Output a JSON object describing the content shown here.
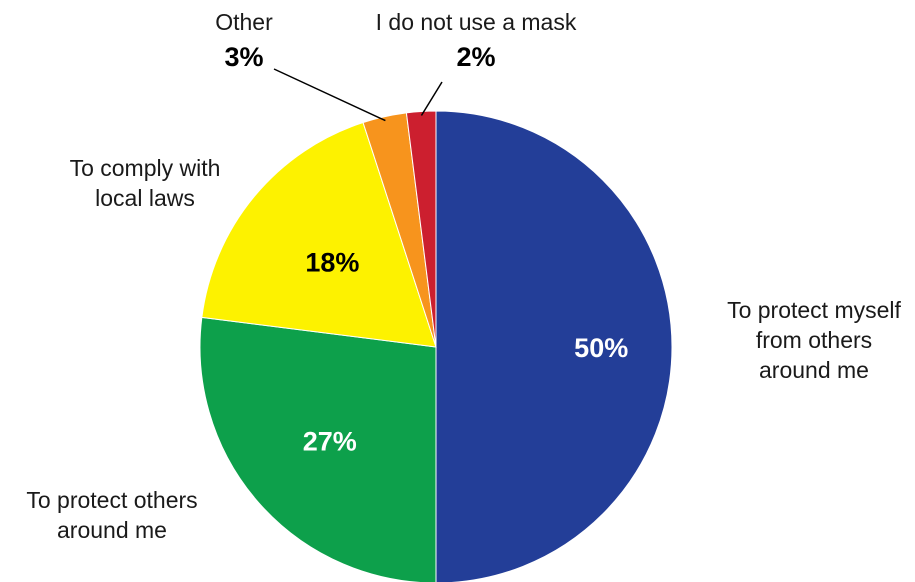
{
  "chart_data": {
    "type": "pie",
    "title": "",
    "slices": [
      {
        "label": "To protect myself from others around me",
        "label_lines": [
          "To protect myself",
          "from others",
          "around me"
        ],
        "value": 50,
        "value_label": "50%",
        "color": "#233e98",
        "value_label_color": "#ffffff"
      },
      {
        "label": "To protect others around me",
        "label_lines": [
          "To protect others",
          "around me"
        ],
        "value": 27,
        "value_label": "27%",
        "color": "#0da04b",
        "value_label_color": "#ffffff"
      },
      {
        "label": "To comply with local laws",
        "label_lines": [
          "To comply with",
          "local laws"
        ],
        "value": 18,
        "value_label": "18%",
        "color": "#fdf200",
        "value_label_color": "#000000"
      },
      {
        "label": "Other",
        "label_lines": [
          "Other"
        ],
        "value": 3,
        "value_label": "3%",
        "color": "#f7941d",
        "value_label_color": "#000000"
      },
      {
        "label": "I do not use a mask",
        "label_lines": [
          "I do not use a mask"
        ],
        "value": 2,
        "value_label": "2%",
        "color": "#cc1f2f",
        "value_label_color": "#000000"
      }
    ]
  }
}
